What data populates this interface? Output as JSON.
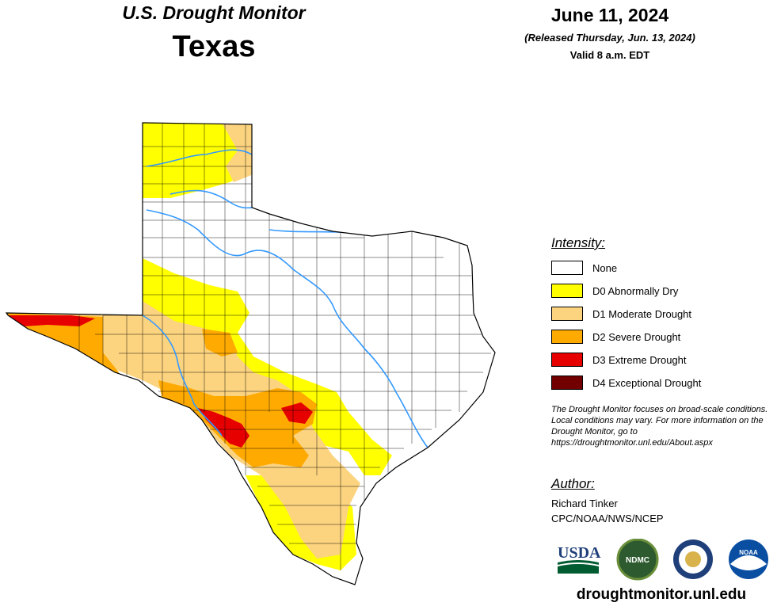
{
  "header": {
    "title": "U.S. Drought Monitor",
    "state": "Texas",
    "date": "June 11, 2024",
    "released": "(Released Thursday, Jun. 13, 2024)",
    "valid": "Valid 8 a.m. EDT"
  },
  "legend": {
    "title": "Intensity:",
    "items": [
      {
        "label": "None",
        "color": "#ffffff"
      },
      {
        "label": "D0 Abnormally Dry",
        "color": "#ffff00"
      },
      {
        "label": "D1 Moderate Drought",
        "color": "#fcd37f"
      },
      {
        "label": "D2 Severe Drought",
        "color": "#ffaa00"
      },
      {
        "label": "D3 Extreme Drought",
        "color": "#e60000"
      },
      {
        "label": "D4 Exceptional Drought",
        "color": "#730000"
      }
    ]
  },
  "note": "The Drought Monitor focuses on broad-scale conditions. Local conditions may vary. For more information on the Drought Monitor, go to https://droughtmonitor.unl.edu/About.aspx",
  "author": {
    "title": "Author:",
    "name": "Richard Tinker",
    "org": "CPC/NOAA/NWS/NCEP"
  },
  "logos": {
    "usda": "USDA",
    "ndmc": "NDMC",
    "noaa": "NOAA"
  },
  "site": "droughtmonitor.unl.edu",
  "colors": {
    "river": "#3399ff",
    "border": "#000000"
  }
}
